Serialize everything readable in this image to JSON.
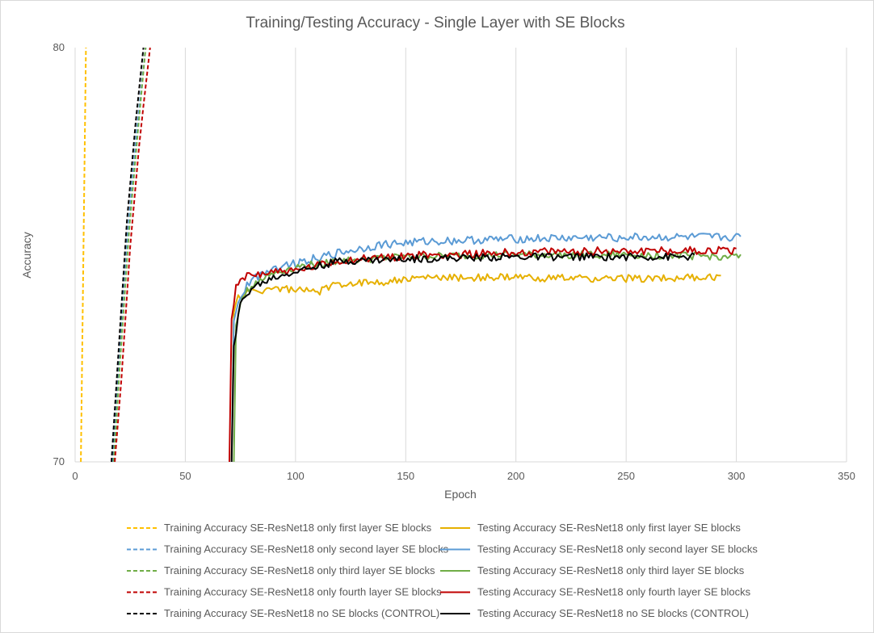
{
  "chart_data": {
    "type": "line",
    "title": "Training/Testing Accuracy - Single Layer with SE Blocks",
    "xlabel": "Epoch",
    "ylabel": "Accuracy",
    "xlim": [
      0,
      350
    ],
    "ylim": [
      70,
      80
    ],
    "x_ticks": [
      "0",
      "50",
      "100",
      "150",
      "200",
      "250",
      "300",
      "350"
    ],
    "y_ticks": [
      "70",
      "80"
    ],
    "grid": "vertical",
    "legend_position": "bottom",
    "series": [
      {
        "name": "Training Accuracy SE-ResNet18 only first layer SE blocks",
        "color": "#FFC000",
        "dash": true,
        "points": [
          [
            2.6,
            70
          ],
          [
            4.9,
            80
          ]
        ]
      },
      {
        "name": "Training Accuracy SE-ResNet18 only second layer SE blocks",
        "color": "#5B9BD5",
        "dash": true,
        "points": [
          [
            17,
            70
          ],
          [
            20,
            72.5
          ],
          [
            24,
            75.6
          ],
          [
            28,
            78
          ],
          [
            32,
            80
          ]
        ]
      },
      {
        "name": "Training Accuracy SE-ResNet18 only third layer SE blocks",
        "color": "#70AD47",
        "dash": true,
        "points": [
          [
            17.5,
            70
          ],
          [
            20.5,
            72.5
          ],
          [
            24.5,
            75.6
          ],
          [
            28.5,
            78
          ],
          [
            32,
            80
          ]
        ]
      },
      {
        "name": "Training Accuracy SE-ResNet18 only fourth layer SE blocks",
        "color": "#C00000",
        "dash": true,
        "points": [
          [
            18,
            70
          ],
          [
            21,
            72
          ],
          [
            25,
            75.2
          ],
          [
            29,
            77.6
          ],
          [
            31,
            78.6
          ],
          [
            34,
            80
          ]
        ]
      },
      {
        "name": "Training Accuracy SE-ResNet18 no SE blocks (CONTROL)",
        "color": "#000000",
        "dash": true,
        "points": [
          [
            16.5,
            70
          ],
          [
            19.5,
            72.5
          ],
          [
            23.5,
            75.8
          ],
          [
            27.5,
            78.2
          ],
          [
            31,
            80
          ]
        ]
      },
      {
        "name": "Testing Accuracy SE-ResNet18 only first layer SE blocks",
        "color": "#E6B000",
        "dash": false,
        "start_epoch": 71,
        "end_epoch": 293,
        "points": [
          [
            71,
            70
          ],
          [
            72,
            73.6
          ],
          [
            74,
            74
          ],
          [
            80,
            74.1
          ],
          [
            90,
            74.2
          ],
          [
            100,
            74.15
          ],
          [
            110,
            74.1
          ],
          [
            120,
            74.3
          ],
          [
            140,
            74.35
          ],
          [
            160,
            74.45
          ],
          [
            200,
            74.45
          ],
          [
            240,
            74.42
          ],
          [
            293,
            74.45
          ]
        ],
        "noise": 0.09
      },
      {
        "name": "Testing Accuracy SE-ResNet18 only second layer SE blocks",
        "color": "#5B9BD5",
        "dash": false,
        "start_epoch": 71,
        "end_epoch": 302,
        "points": [
          [
            71,
            70
          ],
          [
            72,
            73.4
          ],
          [
            75,
            74
          ],
          [
            80,
            74.4
          ],
          [
            90,
            74.7
          ],
          [
            100,
            74.8
          ],
          [
            120,
            75.05
          ],
          [
            140,
            75.25
          ],
          [
            160,
            75.32
          ],
          [
            200,
            75.38
          ],
          [
            250,
            75.42
          ],
          [
            302,
            75.42
          ]
        ],
        "noise": 0.1
      },
      {
        "name": "Testing Accuracy SE-ResNet18 only third layer SE blocks",
        "color": "#70AD47",
        "dash": false,
        "start_epoch": 72,
        "end_epoch": 302,
        "points": [
          [
            72,
            70
          ],
          [
            73,
            73.3
          ],
          [
            76,
            74
          ],
          [
            82,
            74.35
          ],
          [
            90,
            74.55
          ],
          [
            100,
            74.7
          ],
          [
            120,
            74.85
          ],
          [
            150,
            74.95
          ],
          [
            200,
            75.0
          ],
          [
            250,
            75.0
          ],
          [
            302,
            74.95
          ]
        ],
        "noise": 0.09
      },
      {
        "name": "Testing Accuracy SE-ResNet18 only fourth layer SE blocks",
        "color": "#C00000",
        "dash": false,
        "start_epoch": 70,
        "end_epoch": 300,
        "points": [
          [
            70,
            70
          ],
          [
            70.6,
            73.3
          ],
          [
            73,
            74.2
          ],
          [
            78,
            74.5
          ],
          [
            90,
            74.6
          ],
          [
            100,
            74.6
          ],
          [
            120,
            74.85
          ],
          [
            150,
            74.98
          ],
          [
            200,
            75.05
          ],
          [
            250,
            75.1
          ],
          [
            300,
            75.1
          ]
        ],
        "noise": 0.1
      },
      {
        "name": "Testing Accuracy SE-ResNet18 no SE blocks (CONTROL)",
        "color": "#000000",
        "dash": false,
        "start_epoch": 71,
        "end_epoch": 281,
        "points": [
          [
            71,
            70
          ],
          [
            72,
            72.8
          ],
          [
            75,
            73.8
          ],
          [
            80,
            74.2
          ],
          [
            90,
            74.45
          ],
          [
            100,
            74.6
          ],
          [
            120,
            74.85
          ],
          [
            150,
            74.9
          ],
          [
            200,
            74.95
          ],
          [
            250,
            74.95
          ],
          [
            281,
            74.95
          ]
        ],
        "noise": 0.09
      }
    ]
  }
}
